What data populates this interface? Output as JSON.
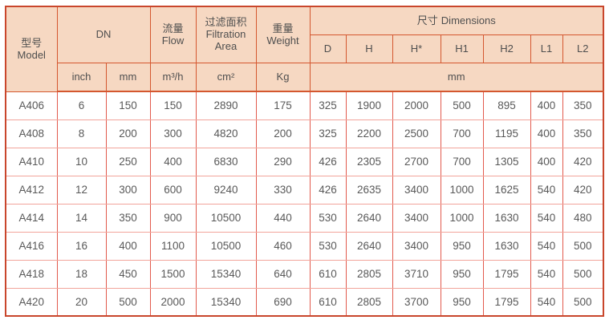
{
  "colors": {
    "header_bg": "#f6d8c2",
    "border_outer": "#c9462c",
    "border_header": "#d4572f",
    "grid_v": "#e25a4d",
    "grid_h": "#f2a49b",
    "text_header": "#4f4f4f",
    "text_data": "#595959"
  },
  "table": {
    "header": {
      "model_zh": "型号",
      "model_en": "Model",
      "dn": "DN",
      "flow_zh": "流量",
      "flow_en": "Flow",
      "filtration_zh": "过滤面积",
      "filtration_en": "Filtration Area",
      "weight_zh": "重量",
      "weight_en": "Weight",
      "dimensions_zh": "尺寸",
      "dimensions_en": "Dimensions"
    },
    "dim_cols": [
      "D",
      "H",
      "H*",
      "H1",
      "H2",
      "L1",
      "L2"
    ],
    "units": {
      "dn_inch": "inch",
      "dn_mm": "mm",
      "flow": "m³/h",
      "filtration": "cm²",
      "weight": "Kg",
      "dimensions": "mm"
    },
    "rows": [
      [
        "A406",
        "6",
        "150",
        "150",
        "2890",
        "175",
        "325",
        "1900",
        "2000",
        "500",
        "895",
        "400",
        "350"
      ],
      [
        "A408",
        "8",
        "200",
        "300",
        "4820",
        "200",
        "325",
        "2200",
        "2500",
        "700",
        "1195",
        "400",
        "350"
      ],
      [
        "A410",
        "10",
        "250",
        "400",
        "6830",
        "290",
        "426",
        "2305",
        "2700",
        "700",
        "1305",
        "400",
        "420"
      ],
      [
        "A412",
        "12",
        "300",
        "600",
        "9240",
        "330",
        "426",
        "2635",
        "3400",
        "1000",
        "1625",
        "540",
        "420"
      ],
      [
        "A414",
        "14",
        "350",
        "900",
        "10500",
        "440",
        "530",
        "2640",
        "3400",
        "1000",
        "1630",
        "540",
        "480"
      ],
      [
        "A416",
        "16",
        "400",
        "1100",
        "10500",
        "460",
        "530",
        "2640",
        "3400",
        "950",
        "1630",
        "540",
        "500"
      ],
      [
        "A418",
        "18",
        "450",
        "1500",
        "15340",
        "640",
        "610",
        "2805",
        "3710",
        "950",
        "1795",
        "540",
        "500"
      ],
      [
        "A420",
        "20",
        "500",
        "2000",
        "15340",
        "690",
        "610",
        "2805",
        "3700",
        "950",
        "1795",
        "540",
        "500"
      ]
    ]
  }
}
